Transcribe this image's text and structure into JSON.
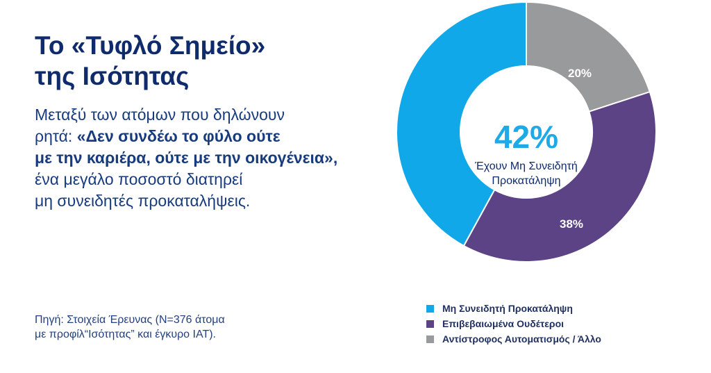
{
  "title": {
    "line1": "Το «Τυφλό Σημείο»",
    "line2": "της Ισότητας"
  },
  "description": {
    "line1": "Μεταξύ των ατόμων που δηλώνουν",
    "line2_prefix": "ρητά: ",
    "line2_bold": "«Δεν συνδέω το φύλο ούτε",
    "line3_bold": "με την καριέρα, ούτε με την οικογένεια»,",
    "line4": "ένα μεγάλο ποσοστό διατηρεί",
    "line5": "μη συνειδητές προκαταλήψεις."
  },
  "source": {
    "line1": "Πηγή: Στοιχεία Έρευνας (N=376 άτομα",
    "line2": "με προφίλ“Ισότητας” και έγκυρο IAT)."
  },
  "center": {
    "value": "42%",
    "label_line1": "Έχουν Μη Συνειδητή",
    "label_line2": "Προκατάληψη"
  },
  "chart_data": {
    "type": "pie",
    "title": "",
    "labels": [
      "Μη Συνειδητή Προκατάληψη",
      "Επιβεβαιωμένα Ουδέτεροι",
      "Αντίστροφος Αυτοματισμός / Άλλο"
    ],
    "values": [
      42,
      38,
      20
    ],
    "value_labels": [
      "",
      "38%",
      "20%"
    ],
    "colors": [
      "#10a8e8",
      "#5b4385",
      "#999a9b"
    ],
    "legend_position": "bottom-right",
    "donut": true
  },
  "legend": {
    "items": [
      {
        "label": "Μη Συνειδητή Προκατάληψη",
        "color": "#10a8e8"
      },
      {
        "label": "Επιβεβαιωμένα Ουδέτεροι",
        "color": "#5b4385"
      },
      {
        "label": "Αντίστροφος Αυτοματισμός / Άλλο",
        "color": "#999a9b"
      }
    ]
  }
}
